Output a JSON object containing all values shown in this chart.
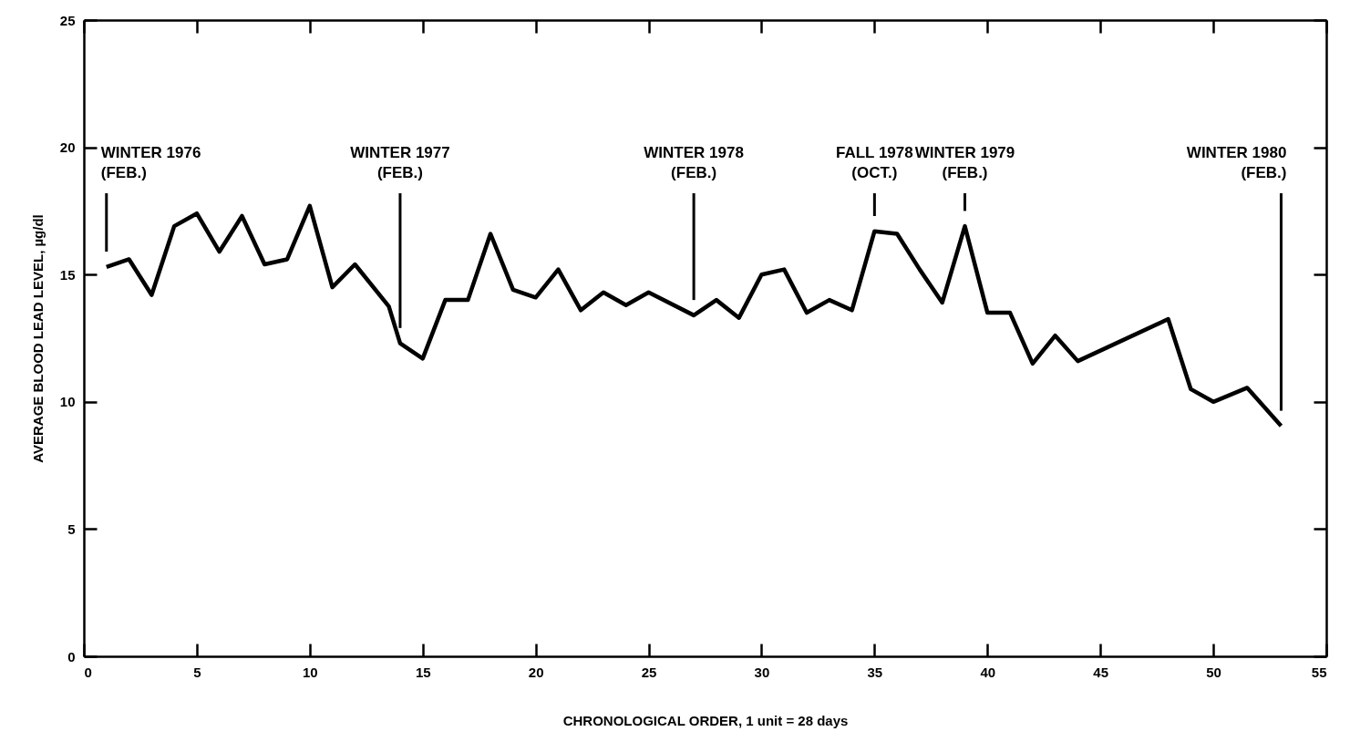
{
  "chart_data": {
    "type": "line",
    "xlabel": "CHRONOLOGICAL ORDER, 1 unit = 28 days",
    "ylabel": "AVERAGE BLOOD LEAD LEVEL, µg/dl",
    "x": [
      1,
      2,
      3,
      4,
      5,
      6,
      7,
      8,
      9,
      10,
      11,
      12,
      13.5,
      14,
      15,
      16,
      17,
      18,
      19,
      20,
      21,
      22,
      23,
      24,
      25,
      27,
      28,
      29,
      30,
      31,
      32,
      33,
      34,
      35,
      36,
      37,
      38,
      39,
      40,
      41,
      42,
      43,
      44,
      48,
      49,
      50,
      51.5,
      53
    ],
    "series": [
      {
        "color": "#000000",
        "values": [
          15.3,
          15.6,
          14.2,
          16.9,
          17.4,
          15.9,
          17.3,
          15.4,
          15.6,
          17.7,
          14.5,
          15.4,
          13.75,
          12.3,
          11.7,
          14.0,
          14.0,
          16.6,
          14.4,
          14.1,
          15.2,
          13.6,
          14.3,
          13.8,
          14.3,
          13.4,
          14.0,
          13.3,
          15.0,
          15.2,
          13.5,
          14.0,
          13.6,
          16.7,
          16.6,
          15.2,
          13.9,
          16.9,
          13.5,
          13.5,
          11.5,
          12.6,
          11.6,
          13.25,
          10.5,
          10.0,
          10.55,
          9.05
        ]
      }
    ],
    "xlim": [
      0,
      55
    ],
    "xticks": [
      0,
      5,
      10,
      15,
      20,
      25,
      30,
      35,
      40,
      45,
      50,
      55
    ],
    "ylim": [
      0,
      25
    ],
    "yticks": [
      0,
      5,
      10,
      15,
      20,
      25
    ],
    "grid": false,
    "marker": "none",
    "line_style": "solid",
    "ref_lines": [
      {
        "axis": "x",
        "value": 1,
        "label": "WINTER 1976\n(FEB.)"
      },
      {
        "axis": "x",
        "value": 14,
        "label": "WINTER 1977\n(FEB.)"
      },
      {
        "axis": "x",
        "value": 27,
        "label": "WINTER 1978\n(FEB.)"
      },
      {
        "axis": "x",
        "value": 35,
        "label": "FALL 1978\n(OCT.)"
      },
      {
        "axis": "x",
        "value": 39,
        "label": "WINTER 1979\n(FEB.)"
      },
      {
        "axis": "x",
        "value": 53,
        "label": "WINTER 1980\n(FEB.)"
      }
    ]
  }
}
